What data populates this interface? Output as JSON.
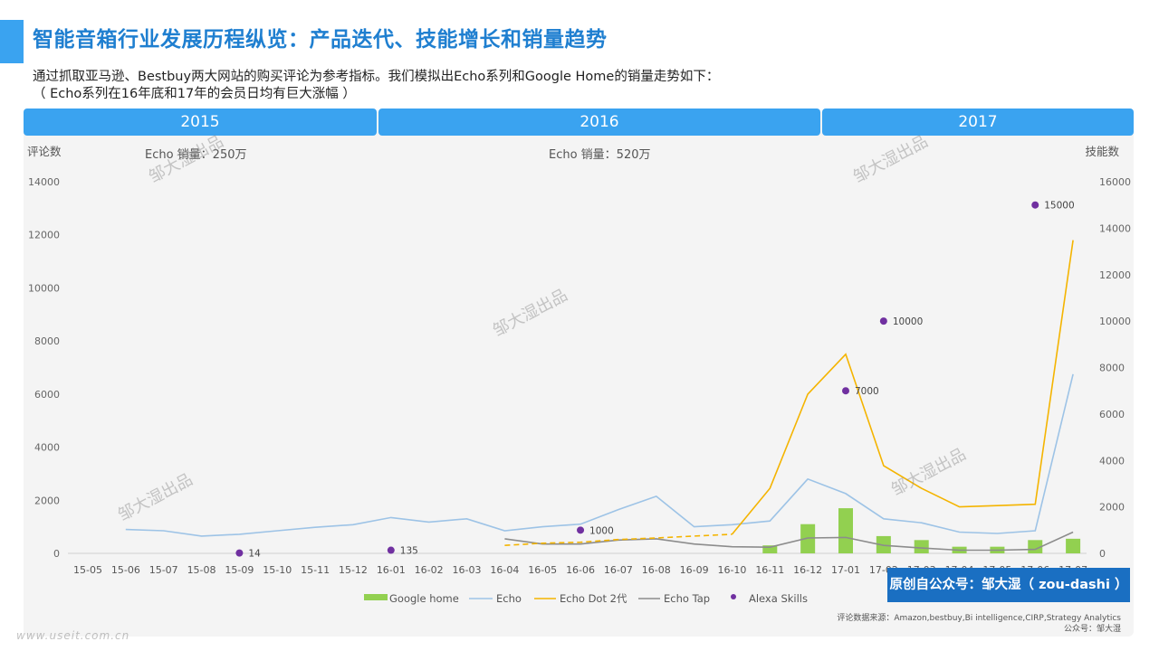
{
  "page": {
    "title": "智能音箱行业发展历程纵览：产品迭代、技能增长和销量趋势",
    "intro_line1": "通过抓取亚马逊、Bestbuy两大网站的购买评论为参考指标。我们模拟出Echo系列和Google Home的销量走势如下：",
    "intro_line2": "（ Echo系列在16年底和17年的会员日均有巨大涨幅 ）",
    "years": [
      "2015",
      "2016",
      "2017"
    ],
    "note_2015": "Echo 销量：250万",
    "note_2016": "Echo 销量：520万",
    "badge": "原创自公众号：邹大湿（ zou-dashi ）",
    "source_line1": "评论数据来源：Amazon,bestbuy,Bi intelligence,CIRP,Strategy Analytics",
    "source_line2": "公众号：邹大湿",
    "watermark": "邹大湿出品",
    "site_mark": "www.useit.com.cn"
  },
  "chart_data": {
    "type": "line",
    "ylabel_left": "评论数",
    "ylabel_right": "技能数",
    "ylim_left": [
      0,
      14000
    ],
    "ylim_right": [
      0,
      16000
    ],
    "yticks_left": [
      0,
      2000,
      4000,
      6000,
      8000,
      10000,
      12000,
      14000
    ],
    "yticks_right": [
      0,
      2000,
      4000,
      6000,
      8000,
      10000,
      12000,
      14000,
      16000
    ],
    "categories": [
      "15-05",
      "15-06",
      "15-07",
      "15-08",
      "15-09",
      "15-10",
      "15-11",
      "15-12",
      "16-01",
      "16-02",
      "16-03",
      "16-04",
      "16-05",
      "16-06",
      "16-07",
      "16-08",
      "16-09",
      "16-10",
      "16-11",
      "16-12",
      "17-01",
      "17-02",
      "17-03",
      "17-04",
      "17-05",
      "17-06",
      "17-07"
    ],
    "series": [
      {
        "name": "Google home",
        "type": "bar",
        "axis": "left",
        "color": "#92d050",
        "values": [
          null,
          null,
          null,
          null,
          null,
          null,
          null,
          null,
          null,
          null,
          null,
          null,
          null,
          null,
          null,
          null,
          null,
          null,
          300,
          1100,
          1700,
          650,
          500,
          250,
          250,
          500,
          550
        ]
      },
      {
        "name": "Echo",
        "type": "line",
        "axis": "left",
        "color": "#9dc3e6",
        "values": [
          null,
          900,
          850,
          650,
          720,
          850,
          980,
          1080,
          1350,
          1180,
          1300,
          850,
          1000,
          1100,
          1650,
          2150,
          1000,
          1080,
          1220,
          2800,
          2250,
          1300,
          1150,
          800,
          750,
          850,
          6750
        ]
      },
      {
        "name": "Echo Dot 2代",
        "type": "line",
        "axis": "left",
        "color": "#f4b400",
        "values": [
          null,
          null,
          null,
          null,
          null,
          null,
          null,
          null,
          null,
          null,
          null,
          300,
          380,
          420,
          520,
          580,
          650,
          720,
          2450,
          6000,
          7500,
          3300,
          2450,
          1750,
          1800,
          1850,
          11800
        ],
        "dashed_until": "16-10"
      },
      {
        "name": "Echo Tap",
        "type": "line",
        "axis": "left",
        "color": "#8c8c8c",
        "values": [
          null,
          null,
          null,
          null,
          null,
          null,
          null,
          null,
          null,
          null,
          null,
          550,
          350,
          350,
          500,
          550,
          350,
          250,
          230,
          580,
          600,
          300,
          200,
          120,
          120,
          150,
          800
        ]
      },
      {
        "name": "Alexa Skills",
        "type": "scatter",
        "axis": "right",
        "color": "#7030a0",
        "points": [
          {
            "x": "15-09",
            "y": 14
          },
          {
            "x": "16-01",
            "y": 135
          },
          {
            "x": "16-06",
            "y": 1000
          },
          {
            "x": "17-01",
            "y": 7000
          },
          {
            "x": "17-02",
            "y": 10000
          },
          {
            "x": "17-06",
            "y": 15000
          }
        ]
      }
    ]
  }
}
